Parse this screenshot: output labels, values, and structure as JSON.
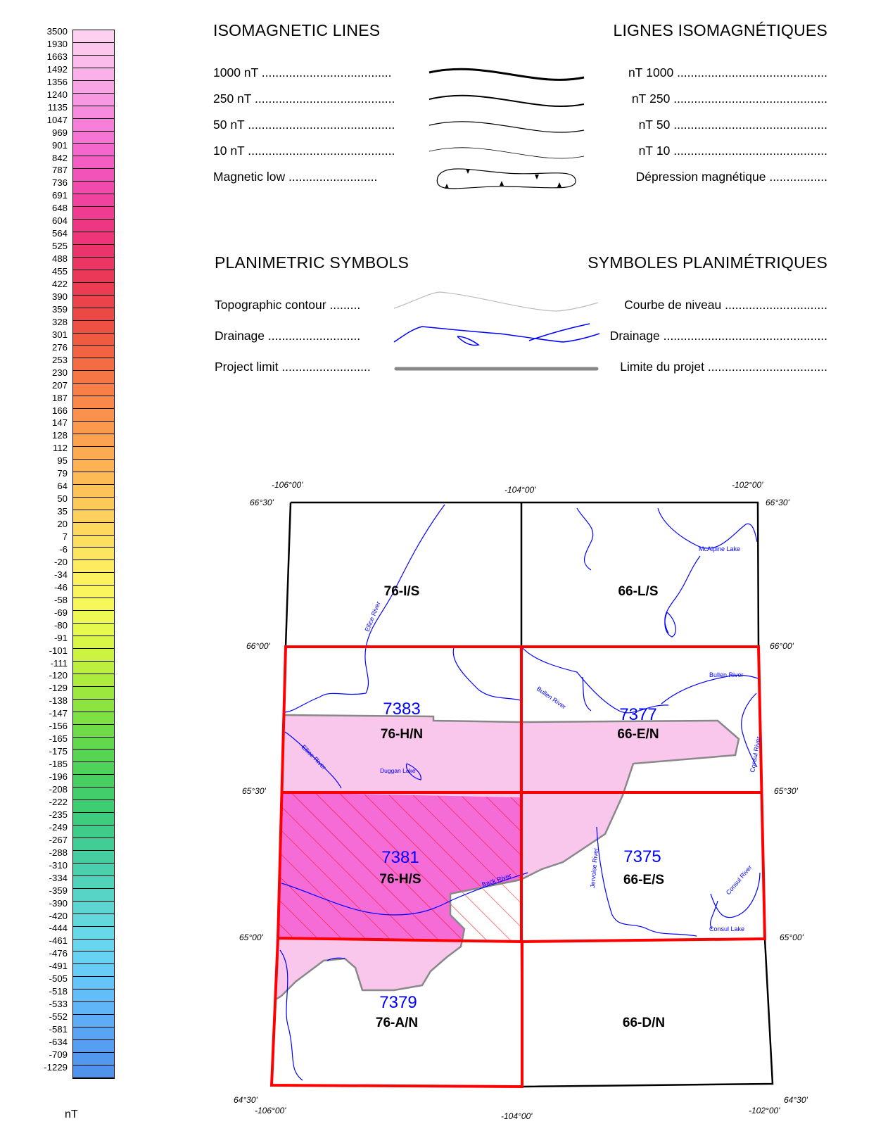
{
  "color_scale": {
    "unit": "nT",
    "labels": [
      "3500",
      "1930",
      "1663",
      "1492",
      "1356",
      "1240",
      "1135",
      "1047",
      "969",
      "901",
      "842",
      "787",
      "736",
      "691",
      "648",
      "604",
      "564",
      "525",
      "488",
      "455",
      "422",
      "390",
      "359",
      "328",
      "301",
      "276",
      "253",
      "230",
      "207",
      "187",
      "166",
      "147",
      "128",
      "112",
      "95",
      "79",
      "64",
      "50",
      "35",
      "20",
      "7",
      "-6",
      "-20",
      "-34",
      "-46",
      "-58",
      "-69",
      "-80",
      "-91",
      "-101",
      "-111",
      "-120",
      "-129",
      "-138",
      "-147",
      "-156",
      "-165",
      "-175",
      "-185",
      "-196",
      "-208",
      "-222",
      "-235",
      "-249",
      "-267",
      "-288",
      "-310",
      "-334",
      "-359",
      "-390",
      "-420",
      "-444",
      "-461",
      "-476",
      "-491",
      "-505",
      "-518",
      "-533",
      "-552",
      "-581",
      "-634",
      "-709",
      "-1229"
    ],
    "colors": [
      "#fdd0f0",
      "#fcc6ee",
      "#fbbbeb",
      "#fab0e8",
      "#f9a4e5",
      "#f898e2",
      "#f78cde",
      "#f680d9",
      "#f574d4",
      "#f468cd",
      "#f35dc4",
      "#f253b9",
      "#f14aac",
      "#f0429e",
      "#ef3b90",
      "#ee3783",
      "#ed3577",
      "#ec346c",
      "#eb3562",
      "#eb3859",
      "#eb3c52",
      "#eb424b",
      "#ec4946",
      "#ee5143",
      "#f05a41",
      "#f26341",
      "#f46c43",
      "#f67645",
      "#f87f47",
      "#f9884a",
      "#fa914c",
      "#fb9a4e",
      "#fca350",
      "#fcab52",
      "#fdb354",
      "#fdbb56",
      "#fdc358",
      "#fdca5a",
      "#fdd15c",
      "#fdd85e",
      "#fddf5f",
      "#fde560",
      "#fdeb60",
      "#fcf15f",
      "#faf55d",
      "#f6f85a",
      "#eff954",
      "#e5f84c",
      "#d9f646",
      "#ccf341",
      "#bdf03e",
      "#adec3d",
      "#9de83e",
      "#8de440",
      "#7ee043",
      "#6fdc47",
      "#62d84c",
      "#57d552",
      "#4ed259",
      "#47d061",
      "#42ce6a",
      "#3fcd74",
      "#3ecc7f",
      "#3fcc8a",
      "#42cd96",
      "#46cea2",
      "#4bd0ae",
      "#51d2ba",
      "#57d4c6",
      "#5dd6d2",
      "#62d8dd",
      "#66d8e7",
      "#68d6ef",
      "#68d2f4",
      "#67ccf7",
      "#65c5f8",
      "#62bdf8",
      "#5fb5f7",
      "#5cadf5",
      "#59a5f3",
      "#569ef1",
      "#5398ef",
      "#5093ec"
    ]
  },
  "isomagnetic": {
    "title_en": "ISOMAGNETIC LINES",
    "title_fr": "LIGNES ISOMAGNÉTIQUES",
    "rows": [
      {
        "en": "1000 nT ......................................",
        "fr": "............................................ 1000 nT"
      },
      {
        "en": "250 nT .........................................",
        "fr": "............................................. 250 nT"
      },
      {
        "en": "50 nT ...........................................",
        "fr": "............................................. 50 nT"
      },
      {
        "en": "10 nT ...........................................",
        "fr": "............................................. 10 nT"
      },
      {
        "en": "Magnetic low ..........................",
        "fr": "................. Dépression magnétique"
      }
    ]
  },
  "planimetric": {
    "title_en": "PLANIMETRIC SYMBOLS",
    "title_fr": "SYMBOLES PLANIMÉTRIQUES",
    "rows": [
      {
        "en": "Topographic contour .........",
        "fr": ".............................. Courbe de niveau"
      },
      {
        "en": "Drainage ...........................",
        "fr": "................................................ Drainage"
      },
      {
        "en": "Project limit ..........................",
        "fr": "................................... Limite du projet"
      }
    ]
  },
  "index_map": {
    "longitudes_top": [
      "-106°00'",
      "-104°00'",
      "-102°00'"
    ],
    "longitudes_bottom": [
      "-106°00'",
      "-104°00'",
      "-102°00'"
    ],
    "latitudes_left": [
      "66°30'",
      "66°00'",
      "65°30'",
      "65°00'",
      "64°30'"
    ],
    "latitudes_right": [
      "66°30'",
      "66°00'",
      "65°30'",
      "65°00'",
      "64°30'"
    ],
    "sheets": [
      {
        "nts": "76-I/S",
        "number": ""
      },
      {
        "nts": "66-L/S",
        "number": ""
      },
      {
        "nts": "76-H/N",
        "number": "7383"
      },
      {
        "nts": "66-E/N",
        "number": "7377"
      },
      {
        "nts": "76-H/S",
        "number": "7381"
      },
      {
        "nts": "66-E/S",
        "number": "7375"
      },
      {
        "nts": "76-A/N",
        "number": "7379"
      },
      {
        "nts": "66-D/N",
        "number": ""
      }
    ],
    "features": [
      "Ellice River",
      "McAlpine Lake",
      "Bullen River",
      "Bullen River",
      "Ellice River",
      "Duggan Lake",
      "Consul River",
      "Back River",
      "Jervoise River",
      "Consul River",
      "Consul Lake"
    ],
    "colors": {
      "sheet_red": "#ff0000",
      "coverage": "#f9c6ec",
      "highlight": "#f56cd6",
      "drainage": "#0000ff",
      "frame": "#000000",
      "project_limit": "#888888",
      "sheet_number": "#0000ff"
    }
  }
}
